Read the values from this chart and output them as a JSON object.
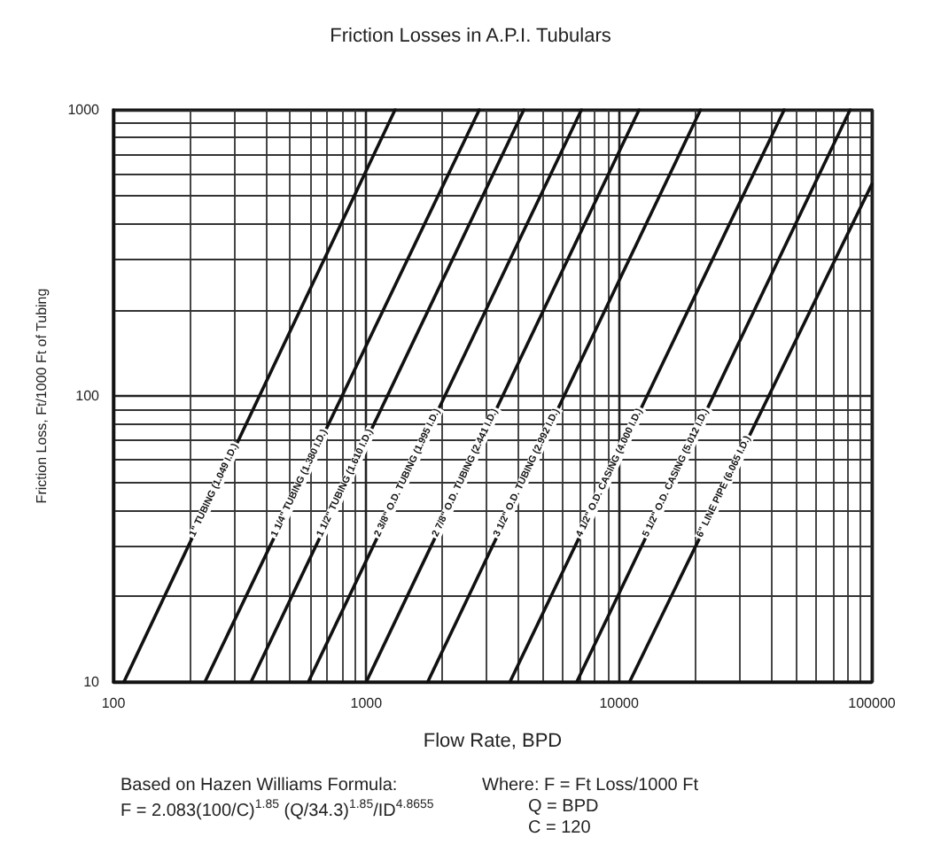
{
  "chart_data": {
    "type": "line",
    "title": "Friction Losses in A.P.I. Tubulars",
    "xlabel": "Flow Rate, BPD",
    "ylabel": "Friction Loss, Ft/1000 Ft of Tubing",
    "log": "xy",
    "grid": true,
    "legend": false,
    "marker": "none",
    "line_style": "solid",
    "xlim": [
      100,
      100000
    ],
    "xticks": [
      100,
      1000,
      10000,
      100000
    ],
    "ylim": [
      10,
      1000
    ],
    "yticks": [
      10,
      100,
      1000
    ],
    "series": [
      {
        "name": "1\" TUBING (1.049 I.D.)",
        "color": "#111111",
        "x": [
          110,
          1300
        ],
        "values": [
          10,
          1000
        ]
      },
      {
        "name": "1 1/4\" TUBING (1.380 I.D.)",
        "color": "#111111",
        "x": [
          230,
          2800
        ],
        "values": [
          10,
          1000
        ]
      },
      {
        "name": "1 1/2\" TUBING (1.610 I.D.)",
        "color": "#111111",
        "x": [
          350,
          4200
        ],
        "values": [
          10,
          1000
        ]
      },
      {
        "name": "2 3/8\" O.D. TUBING (1.995 I.D.)",
        "color": "#111111",
        "x": [
          590,
          7100
        ],
        "values": [
          10,
          1000
        ]
      },
      {
        "name": "2 7/8\" O.D. TUBING (2.441 I.D.)",
        "color": "#111111",
        "x": [
          1000,
          12000
        ],
        "values": [
          10,
          1000
        ]
      },
      {
        "name": "3 1/2\" O.D. TUBING (2.992 I.D.)",
        "color": "#111111",
        "x": [
          1750,
          21000
        ],
        "values": [
          10,
          1000
        ]
      },
      {
        "name": "4 1/2\" O.D. CASING (4.000 I.D.)",
        "color": "#111111",
        "x": [
          3700,
          45000
        ],
        "values": [
          10,
          1000
        ]
      },
      {
        "name": "5 1/2\" O.D. CASING (5.012 I.D.)",
        "color": "#111111",
        "x": [
          6800,
          82000
        ],
        "values": [
          10,
          1000
        ]
      },
      {
        "name": "6\" LINE PIPE (6.065 I.D.)",
        "color": "#111111",
        "x": [
          11000,
          100000
        ],
        "values": [
          10,
          550
        ]
      }
    ],
    "annotations": [
      "Based on Hazen Williams Formula:",
      "F = 2.083(100/C)$^{1.85}$ (Q/34.3)$^{1.85}$/ID$^{4.8655}$",
      "Where: F = Ft Loss/1000 Ft",
      "Q = BPD",
      "C = 120"
    ]
  }
}
